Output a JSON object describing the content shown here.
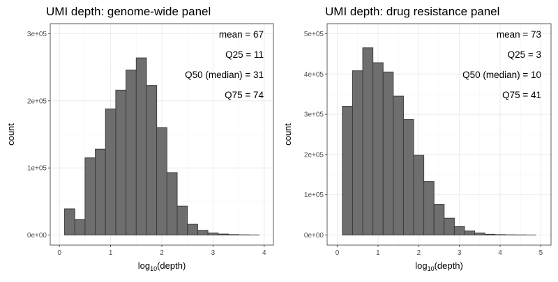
{
  "chart_data": [
    {
      "type": "bar",
      "title": "UMI depth: genome-wide panel",
      "xlabel": "log",
      "xlabel_sub": "10",
      "xlabel_suffix": "(depth)",
      "ylabel": "count",
      "xlim": [
        -0.18,
        4.18
      ],
      "ylim": [
        -15000,
        315000
      ],
      "xticks": [
        0,
        1,
        2,
        3,
        4
      ],
      "xtick_labels": [
        "0",
        "1",
        "2",
        "3",
        "4"
      ],
      "yticks": [
        0,
        100000,
        200000,
        300000
      ],
      "ytick_labels": [
        "0e+00",
        "1e+05",
        "2e+05",
        "3e+05"
      ],
      "bin_width": 0.2,
      "bin_centers": [
        0.2,
        0.4,
        0.6,
        0.8,
        1.0,
        1.2,
        1.4,
        1.6,
        1.8,
        2.0,
        2.2,
        2.4,
        2.6,
        2.8,
        3.0,
        3.2,
        3.4,
        3.6,
        3.8
      ],
      "values": [
        39000,
        23000,
        115000,
        128000,
        188000,
        216000,
        246000,
        264000,
        223000,
        160000,
        93000,
        43000,
        16000,
        7000,
        3000,
        1500,
        700,
        300,
        100
      ],
      "grid": true,
      "annotations": [
        "mean = 67",
        "Q25 = 11",
        "Q50 (median) = 31",
        "Q75 = 74"
      ]
    },
    {
      "type": "bar",
      "title": "UMI depth: drug resistance panel",
      "xlabel": "log",
      "xlabel_sub": "10",
      "xlabel_suffix": "(depth)",
      "ylabel": "count",
      "xlim": [
        -0.25,
        5.25
      ],
      "ylim": [
        -25000,
        525000
      ],
      "xticks": [
        0,
        1,
        2,
        3,
        4,
        5
      ],
      "xtick_labels": [
        "0",
        "1",
        "2",
        "3",
        "4",
        "5"
      ],
      "yticks": [
        0,
        100000,
        200000,
        300000,
        400000,
        500000
      ],
      "ytick_labels": [
        "0e+00",
        "1e+05",
        "2e+05",
        "3e+05",
        "4e+05",
        "5e+05"
      ],
      "bin_width": 0.25,
      "bin_centers": [
        0.25,
        0.5,
        0.75,
        1.0,
        1.25,
        1.5,
        1.75,
        2.0,
        2.25,
        2.5,
        2.75,
        3.0,
        3.25,
        3.5,
        3.75,
        4.0,
        4.25,
        4.5,
        4.75
      ],
      "values": [
        320000,
        408000,
        465000,
        428000,
        405000,
        345000,
        287000,
        198000,
        133000,
        76000,
        42000,
        21000,
        10000,
        5000,
        2000,
        1000,
        500,
        300,
        100
      ],
      "grid": true,
      "annotations": [
        "mean = 73",
        "Q25 = 3",
        "Q50 (median) = 10",
        "Q75 = 41"
      ]
    }
  ]
}
